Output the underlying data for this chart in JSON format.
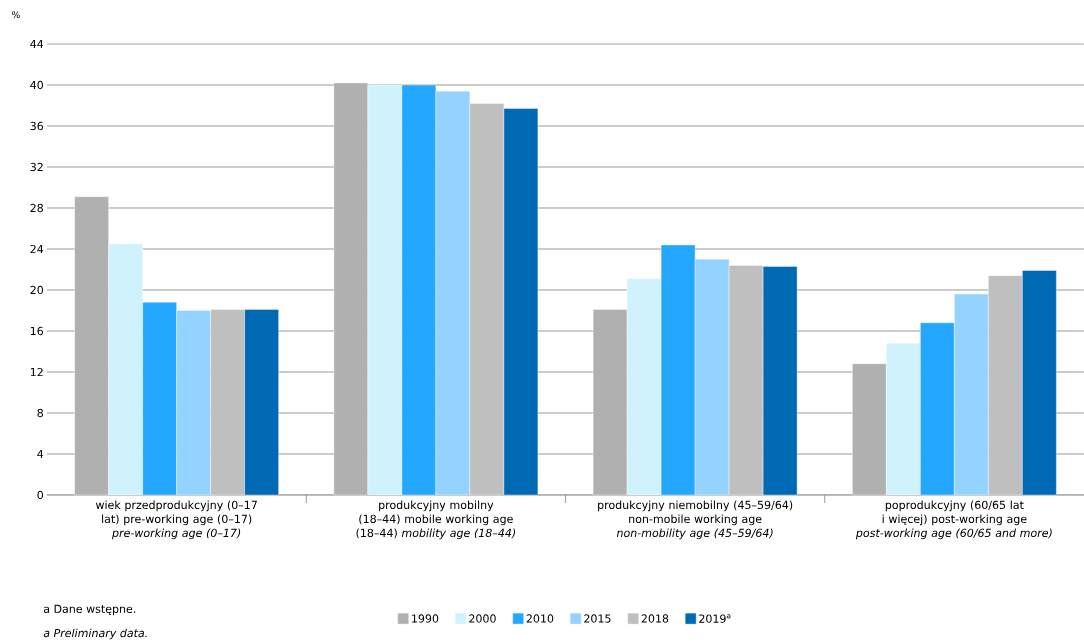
{
  "chart_data": {
    "type": "bar",
    "ylabel": "%",
    "categories": [
      "wiek przedprodukcyjny (0–17 lat) pre-working age (0–17) *pre-working age (0–17)*",
      "produkcyjny mobilny (18–44) mobile working age (18–44) *mobility age (18–44)*",
      "produkcyjny niemobilny (45–59/64) non-mobile working age *non-mobility age (45–59/64)*",
      "poprodukcyjny (60/65 lat i więcej) post-working age *post-working age (60/65 and more)*"
    ],
    "series": [
      {
        "name": "1990",
        "color": "#b0b0b0",
        "values": [
          29.1,
          40.2,
          18.1,
          12.8
        ]
      },
      {
        "name": "2000",
        "color": "#cff2fd",
        "values": [
          24.5,
          40.0,
          21.1,
          14.8
        ]
      },
      {
        "name": "2010",
        "color": "#24a8ff",
        "values": [
          18.8,
          40.0,
          24.4,
          16.8
        ]
      },
      {
        "name": "2015",
        "color": "#94d3ff",
        "values": [
          18.0,
          39.4,
          23.0,
          19.6
        ]
      },
      {
        "name": "2018",
        "color": "#bfbfbf",
        "values": [
          18.1,
          38.2,
          22.4,
          21.4
        ]
      },
      {
        "name": "2019$^{a}$",
        "color": "#0069b4",
        "values": [
          18.1,
          37.7,
          22.3,
          21.9
        ]
      }
    ],
    "ylim": [
      0,
      44
    ],
    "yticks": [
      0,
      4,
      8,
      12,
      16,
      20,
      24,
      28,
      32,
      36,
      40,
      44
    ],
    "grid": "y",
    "legend": "bottom",
    "annotations": [
      "a Dane wstępne.",
      "*a Preliminary data.*"
    ]
  }
}
